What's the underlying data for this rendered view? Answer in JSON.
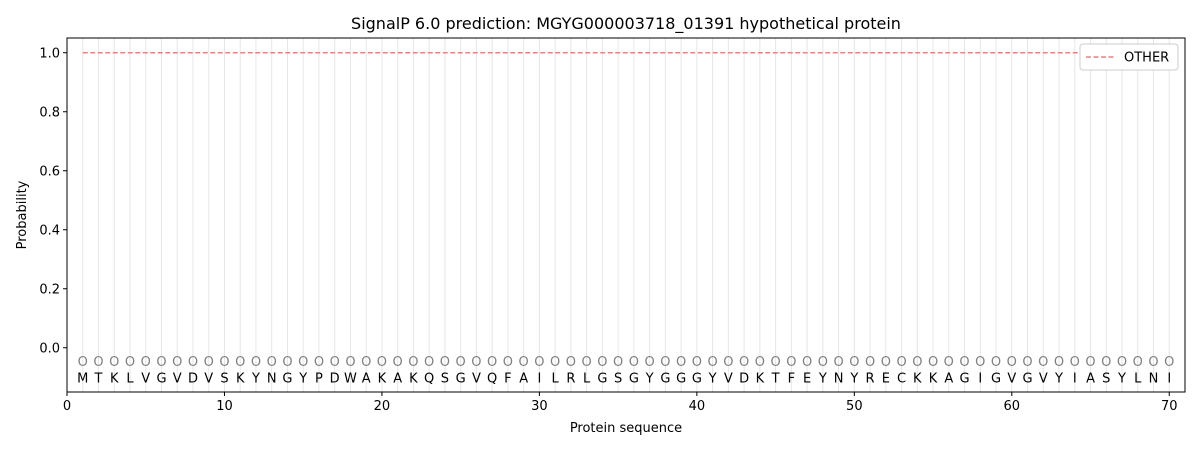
{
  "chart_data": {
    "type": "line",
    "title": "SignalP 6.0 prediction: MGYG000003718_01391 hypothetical protein",
    "xlabel": "Protein sequence",
    "ylabel": "Probability",
    "xlim": [
      0,
      71
    ],
    "ylim": [
      -0.15,
      1.05
    ],
    "xticks": [
      0,
      10,
      20,
      30,
      40,
      50,
      60,
      70
    ],
    "yticks": [
      0.0,
      0.2,
      0.4,
      0.6,
      0.8,
      1.0
    ],
    "ytick_labels": [
      "0.0",
      "0.2",
      "0.4",
      "0.6",
      "0.8",
      "1.0"
    ],
    "grid": "vertical lines at each residue",
    "legend_placement": "top-right",
    "sequence": "MTKLVGVDVSKYNGYPDWAKAKQSGVQFAILRLGSGYGGGYVDKTFEYNYRECKKAGIGVGVYIASYLNI",
    "region_label": "O",
    "series": [
      {
        "name": "OTHER",
        "color": "#f08080",
        "style": "dashed",
        "x_range": [
          1,
          70
        ],
        "value": 1.0
      }
    ]
  }
}
